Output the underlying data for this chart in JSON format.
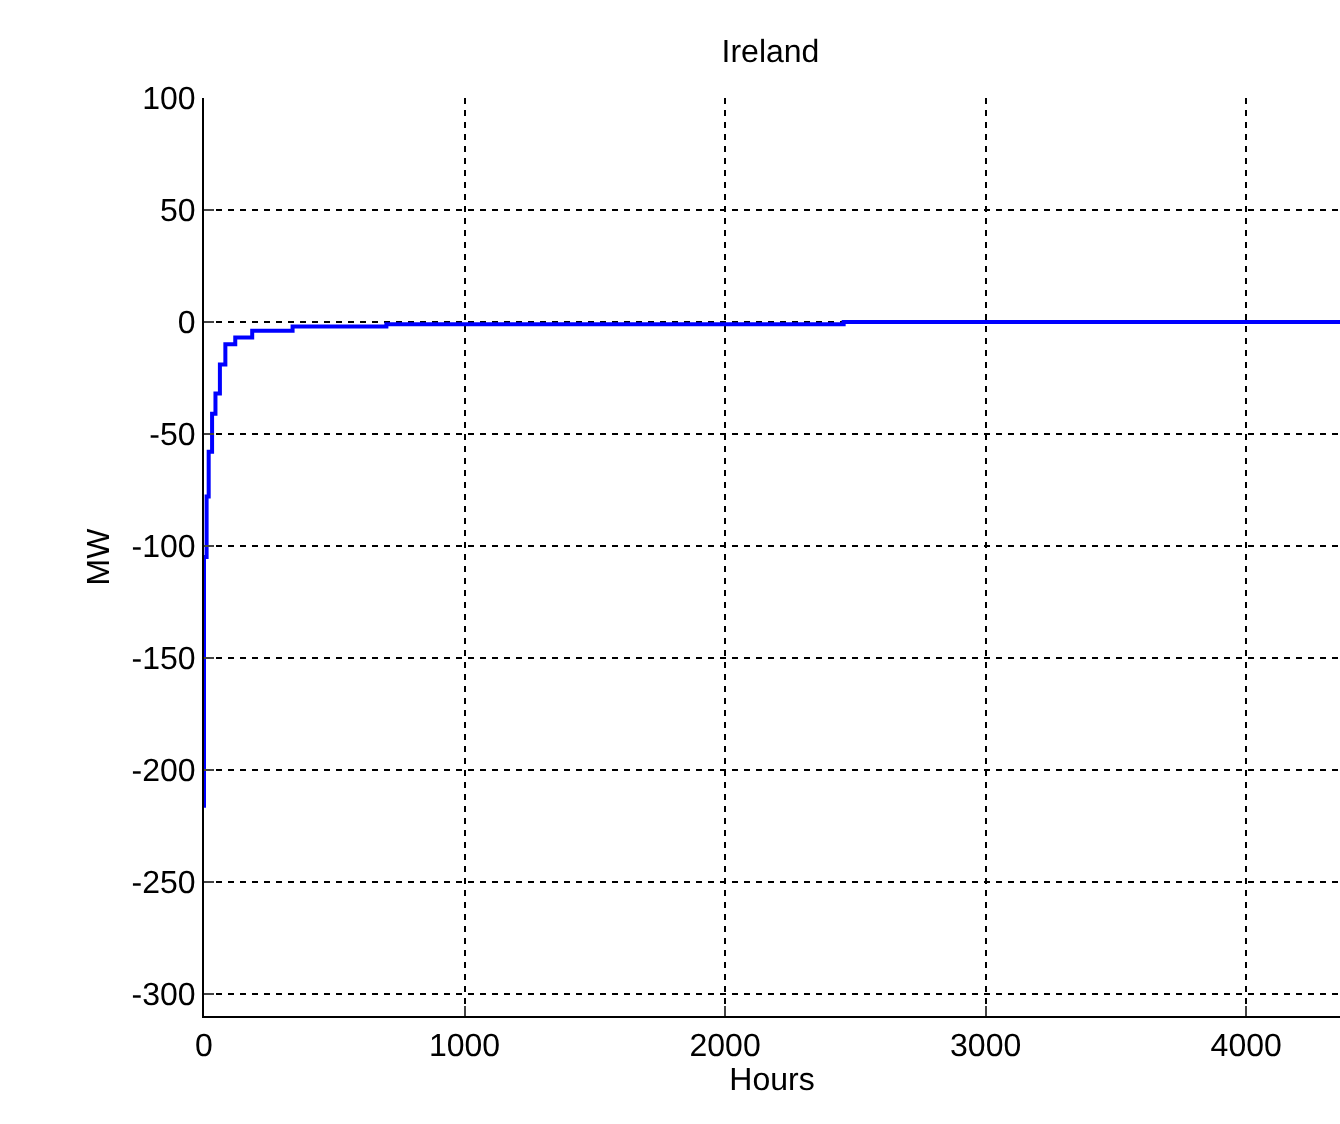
{
  "chart_data": {
    "type": "step",
    "title": "Ireland",
    "xlabel": "Hours",
    "ylabel": "MW",
    "x": [
      0,
      0,
      10,
      18,
      31,
      44,
      61,
      82,
      120,
      185,
      340,
      700,
      705,
      2450,
      2455,
      4360
    ],
    "series": [
      {
        "color": "#0000ff",
        "values": [
          -217,
          -105,
          -78,
          -58,
          -41,
          -32,
          -19,
          -10,
          -7,
          -4,
          -2,
          -1,
          -1,
          -1,
          0,
          0
        ]
      }
    ],
    "xlim": [
      0,
      4360
    ],
    "xticks": [
      0,
      1000,
      2000,
      3000,
      4000
    ],
    "ylim": [
      -310,
      100
    ],
    "yticks": [
      -300,
      -250,
      -200,
      -150,
      -100,
      -50,
      0,
      50,
      100
    ],
    "grid": true,
    "line_style": "solid",
    "marker": "none"
  }
}
